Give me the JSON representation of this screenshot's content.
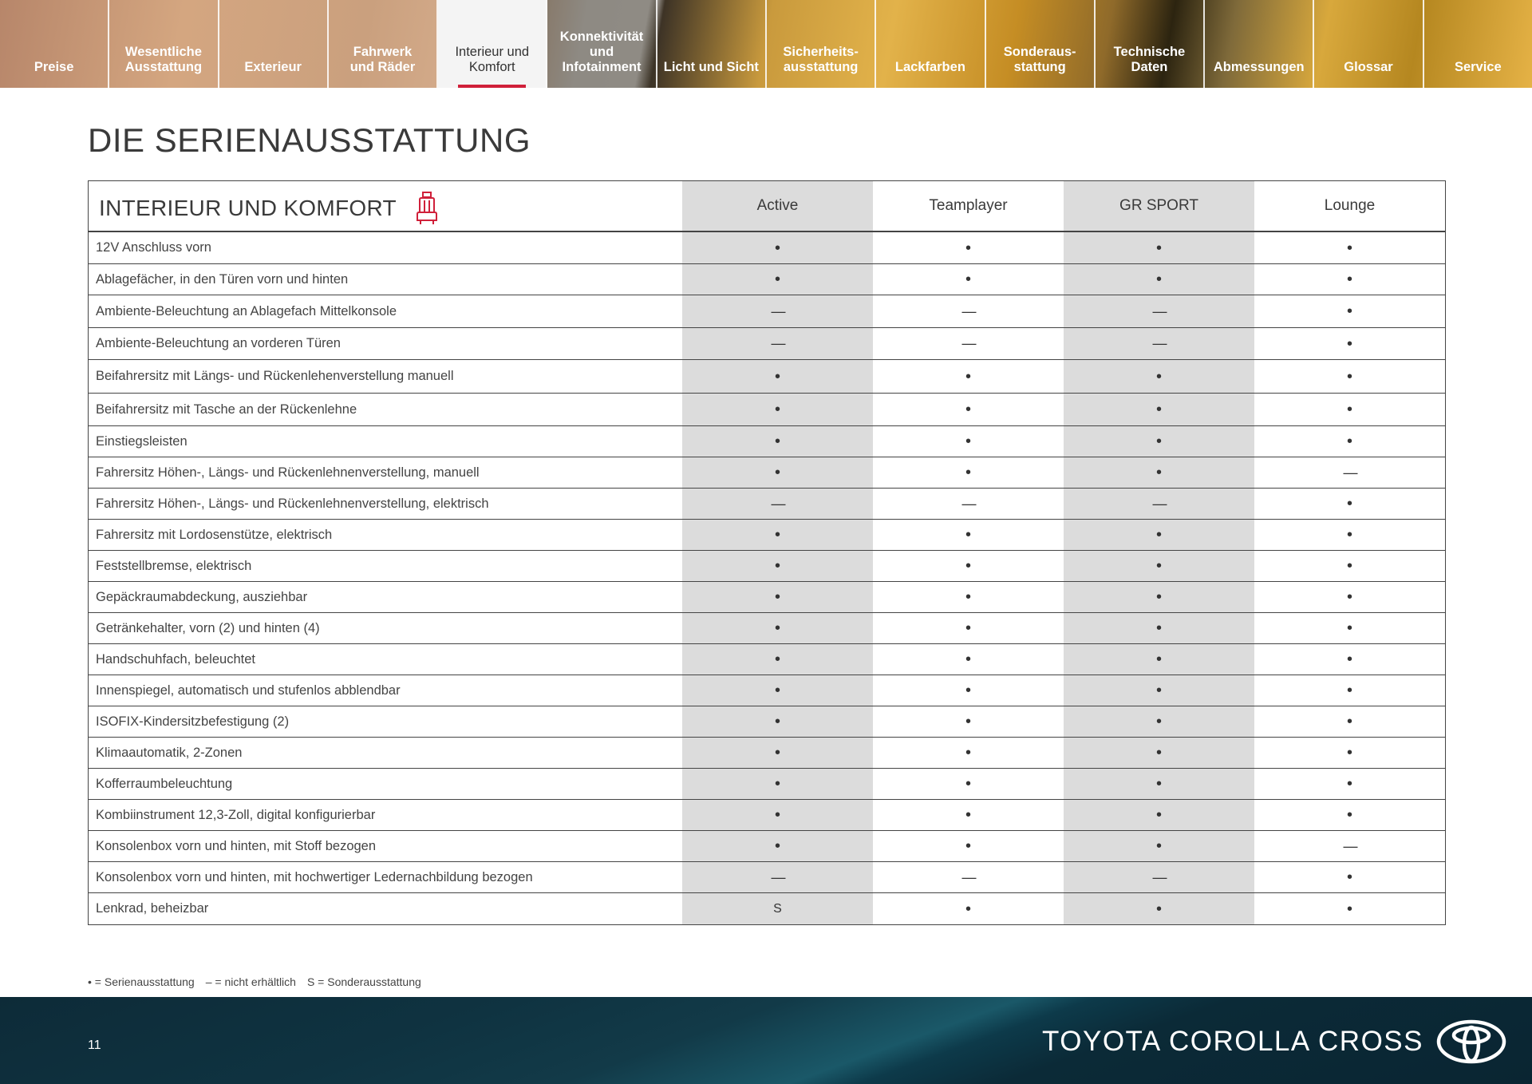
{
  "nav": {
    "tabs": [
      {
        "label": "Preise"
      },
      {
        "label": "Wesentliche\nAusstattung"
      },
      {
        "label": "Exterieur"
      },
      {
        "label": "Fahrwerk\nund Räder"
      },
      {
        "label": "Interieur und\nKomfort",
        "active": true
      },
      {
        "label": "Konnektivität\nund\nInfotainment"
      },
      {
        "label": "Licht und Sicht"
      },
      {
        "label": "Sicherheits-\nausstattung"
      },
      {
        "label": "Lackfarben"
      },
      {
        "label": "Sonderaus-\nstattung"
      },
      {
        "label": "Technische\nDaten"
      },
      {
        "label": "Abmessungen"
      },
      {
        "label": "Glossar"
      },
      {
        "label": "Service"
      }
    ]
  },
  "page": {
    "title": "DIE SERIENAUSSTATTUNG",
    "section_title": "INTERIEUR UND KOMFORT"
  },
  "table": {
    "variants": [
      "Active",
      "Teamplayer",
      "GR SPORT",
      "Lounge"
    ],
    "rows": [
      {
        "feature": "12V Anschluss vorn",
        "values": [
          "•",
          "•",
          "•",
          "•"
        ]
      },
      {
        "feature": "Ablagefächer, in den Türen vorn und hinten",
        "values": [
          "•",
          "•",
          "•",
          "•"
        ]
      },
      {
        "feature": "Ambiente-Beleuchtung an Ablagefach Mittelkonsole",
        "values": [
          "—",
          "—",
          "—",
          "•"
        ]
      },
      {
        "feature": "Ambiente-Beleuchtung an vorderen Türen",
        "values": [
          "—",
          "—",
          "—",
          "•"
        ]
      },
      {
        "feature": "Beifahrersitz mit Längs- und Rückenlehenverstellung manuell",
        "values": [
          "•",
          "•",
          "•",
          "•"
        ]
      },
      {
        "feature": "Beifahrersitz mit Tasche an der Rückenlehne",
        "values": [
          "•",
          "•",
          "•",
          "•"
        ]
      },
      {
        "feature": "Einstiegsleisten",
        "values": [
          "•",
          "•",
          "•",
          "•"
        ]
      },
      {
        "feature": "Fahrersitz Höhen-, Längs- und Rückenlehnenverstellung, manuell",
        "values": [
          "•",
          "•",
          "•",
          "—"
        ]
      },
      {
        "feature": "Fahrersitz Höhen-, Längs- und Rückenlehnenverstellung, elektrisch",
        "values": [
          "—",
          "—",
          "—",
          "•"
        ]
      },
      {
        "feature": "Fahrersitz mit Lordosenstütze, elektrisch",
        "values": [
          "•",
          "•",
          "•",
          "•"
        ]
      },
      {
        "feature": "Feststellbremse, elektrisch",
        "values": [
          "•",
          "•",
          "•",
          "•"
        ]
      },
      {
        "feature": "Gepäckraumabdeckung, ausziehbar",
        "values": [
          "•",
          "•",
          "•",
          "•"
        ]
      },
      {
        "feature": "Getränkehalter, vorn (2) und hinten (4)",
        "values": [
          "•",
          "•",
          "•",
          "•"
        ]
      },
      {
        "feature": "Handschuhfach, beleuchtet",
        "values": [
          "•",
          "•",
          "•",
          "•"
        ]
      },
      {
        "feature": "Innenspiegel, automatisch und stufenlos abblendbar",
        "values": [
          "•",
          "•",
          "•",
          "•"
        ]
      },
      {
        "feature": "ISOFIX-Kindersitzbefestigung (2)",
        "values": [
          "•",
          "•",
          "•",
          "•"
        ]
      },
      {
        "feature": "Klimaautomatik, 2-Zonen",
        "values": [
          "•",
          "•",
          "•",
          "•"
        ]
      },
      {
        "feature": "Kofferraumbeleuchtung",
        "values": [
          "•",
          "•",
          "•",
          "•"
        ]
      },
      {
        "feature": "Kombiinstrument 12,3-Zoll, digital konfigurierbar",
        "values": [
          "•",
          "•",
          "•",
          "•"
        ]
      },
      {
        "feature": "Konsolenbox vorn und hinten, mit Stoff bezogen",
        "values": [
          "•",
          "•",
          "•",
          "—"
        ]
      },
      {
        "feature": "Konsolenbox vorn und hinten, mit hochwertiger Ledernachbildung bezogen",
        "values": [
          "—",
          "—",
          "—",
          "•"
        ]
      },
      {
        "feature": "Lenkrad, beheizbar",
        "values": [
          "S",
          "•",
          "•",
          "•"
        ]
      }
    ]
  },
  "legend": {
    "standard": "• = Serienausstattung",
    "not_available": "– = nicht erhältlich",
    "optional": "S = Sonderausstattung"
  },
  "footer": {
    "page_number": "11",
    "brand": "TOYOTA COROLLA CROSS"
  },
  "icons": {
    "section_icon": "seat-icon",
    "brand_icon": "toyota-logo-icon"
  },
  "colors": {
    "accent": "#d0203a",
    "shade": "#dcdcdc",
    "footer": "#0f3341"
  }
}
